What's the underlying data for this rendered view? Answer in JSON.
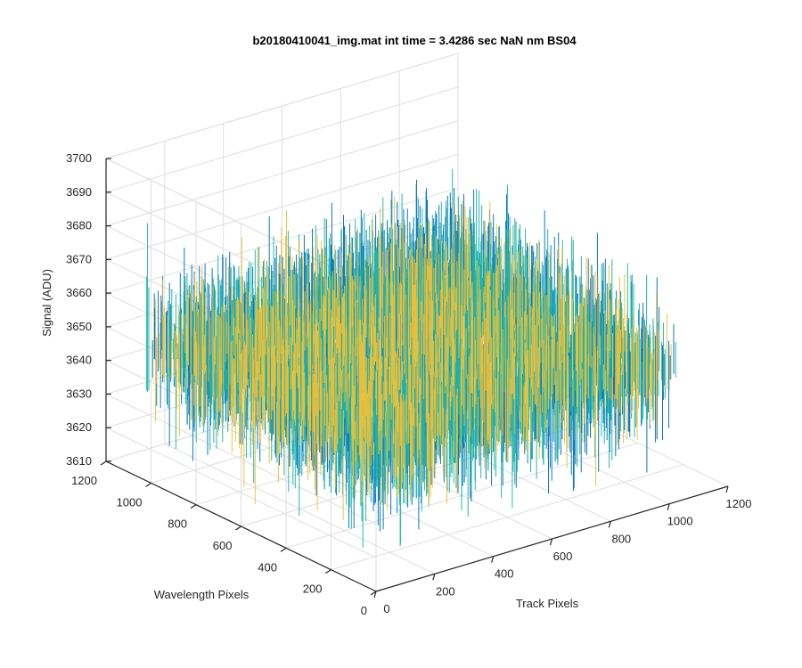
{
  "chart_data": {
    "type": "surface",
    "title": "b20180410041_img.mat int time = 3.4286 sec  NaN nm BS04",
    "xlabel": "Track Pixels",
    "ylabel": "Wavelength Pixels",
    "zlabel": "Signal (ADU)",
    "xlim": [
      0,
      1200
    ],
    "ylim": [
      0,
      1200
    ],
    "zlim": [
      3610,
      3700
    ],
    "xticks": [
      "0",
      "200",
      "400",
      "600",
      "800",
      "1000",
      "1200"
    ],
    "yticks": [
      "0",
      "200",
      "400",
      "600",
      "800",
      "1000",
      "1200"
    ],
    "zticks": [
      "3610",
      "3620",
      "3630",
      "3640",
      "3650",
      "3660",
      "3670",
      "3680",
      "3690",
      "3700"
    ],
    "grid": true,
    "data_extent": {
      "x": [
        0,
        1024
      ],
      "y": [
        0,
        1024
      ]
    },
    "signal_mean": 3650,
    "signal_range": [
      3614,
      3692
    ],
    "colors": {
      "low": "#0072bd",
      "mid": "#1fb4a8",
      "high": "#edc13a"
    }
  }
}
